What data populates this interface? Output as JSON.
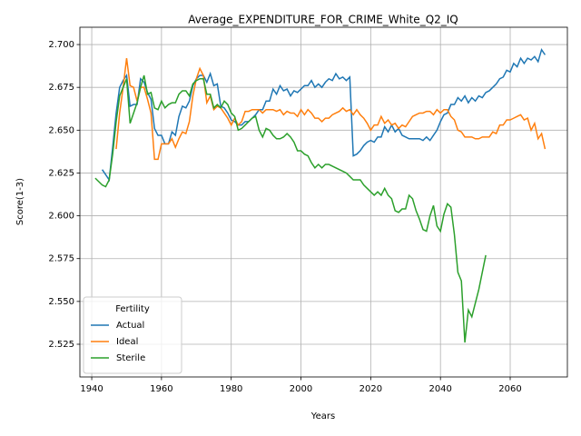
{
  "chart_data": {
    "type": "line",
    "title": "Average_EXPENDITURE_FOR_CRIME_White_Q2_IQ",
    "xlabel": "Years",
    "ylabel": "Score(1-3)",
    "legend_title": "Fertility",
    "legend": "lower left",
    "grid": true,
    "xlim": [
      1936.6,
      2076.4
    ],
    "ylim": [
      2.5059,
      2.7101
    ],
    "xticks": [
      1940,
      1960,
      1980,
      2000,
      2020,
      2040,
      2060
    ],
    "yticks": [
      2.525,
      {
        "value": 2.55,
        "label": "2.550"
      },
      2.575,
      {
        "value": 2.6,
        "label": "2.600"
      },
      2.625,
      {
        "value": 2.65,
        "label": "2.650"
      },
      2.675,
      {
        "value": 2.7,
        "label": "2.700"
      }
    ],
    "x": [
      1941,
      1942,
      1943,
      1944,
      1945,
      1946,
      1947,
      1948,
      1949,
      1950,
      1951,
      1952,
      1953,
      1954,
      1955,
      1956,
      1957,
      1958,
      1959,
      1960,
      1961,
      1962,
      1963,
      1964,
      1965,
      1966,
      1967,
      1968,
      1969,
      1970,
      1971,
      1972,
      1973,
      1974,
      1975,
      1976,
      1977,
      1978,
      1979,
      1980,
      1981,
      1982,
      1983,
      1984,
      1985,
      1986,
      1987,
      1988,
      1989,
      1990,
      1991,
      1992,
      1993,
      1994,
      1995,
      1996,
      1997,
      1998,
      1999,
      2000,
      2001,
      2002,
      2003,
      2004,
      2005,
      2006,
      2007,
      2008,
      2009,
      2010,
      2011,
      2012,
      2013,
      2014,
      2015,
      2016,
      2017,
      2018,
      2019,
      2020,
      2021,
      2022,
      2023,
      2024,
      2025,
      2026,
      2027,
      2028,
      2029,
      2030,
      2031,
      2032,
      2033,
      2034,
      2035,
      2036,
      2037,
      2038,
      2039,
      2040,
      2041,
      2042,
      2043,
      2044,
      2045,
      2046,
      2047,
      2048,
      2049,
      2050,
      2051,
      2052,
      2053,
      2054,
      2055,
      2056,
      2057,
      2058,
      2059,
      2060,
      2061,
      2062,
      2063,
      2064,
      2065,
      2066,
      2067,
      2068,
      2069,
      2070
    ],
    "series": [
      {
        "name": "Actual",
        "color": "#1f77b4",
        "values": [
          null,
          null,
          2.627,
          2.624,
          2.621,
          2.64,
          2.66,
          2.675,
          2.679,
          2.682,
          2.664,
          2.665,
          2.665,
          2.68,
          2.678,
          2.672,
          2.668,
          2.651,
          2.647,
          2.647,
          2.642,
          2.642,
          2.649,
          2.647,
          2.658,
          2.664,
          2.663,
          2.667,
          2.676,
          2.68,
          2.682,
          2.682,
          2.678,
          2.683,
          2.676,
          2.677,
          2.664,
          2.663,
          2.66,
          2.656,
          2.655,
          2.653,
          2.653,
          2.655,
          2.655,
          2.657,
          2.659,
          2.662,
          2.662,
          2.667,
          2.667,
          2.674,
          2.671,
          2.676,
          2.673,
          2.674,
          2.67,
          2.673,
          2.672,
          2.674,
          2.676,
          2.676,
          2.679,
          2.675,
          2.677,
          2.675,
          2.678,
          2.68,
          2.679,
          2.683,
          2.68,
          2.681,
          2.679,
          2.681,
          2.635,
          2.636,
          2.638,
          2.641,
          2.643,
          2.644,
          2.643,
          2.646,
          2.646,
          2.652,
          2.649,
          2.653,
          2.649,
          2.651,
          2.647,
          2.646,
          2.645,
          2.645,
          2.645,
          2.645,
          2.644,
          2.646,
          2.644,
          2.647,
          2.65,
          2.655,
          2.659,
          2.66,
          2.665,
          2.665,
          2.669,
          2.667,
          2.67,
          2.666,
          2.669,
          2.667,
          2.67,
          2.669,
          2.672,
          2.673,
          2.675,
          2.677,
          2.68,
          2.681,
          2.685,
          2.684,
          2.689,
          2.687,
          2.692,
          2.689,
          2.692,
          2.691,
          2.693,
          2.69,
          2.697,
          2.694
        ]
      },
      {
        "name": "Ideal",
        "color": "#ff7f0e",
        "values": [
          null,
          null,
          null,
          null,
          null,
          null,
          2.639,
          2.66,
          2.675,
          2.692,
          2.676,
          2.675,
          2.667,
          2.675,
          2.675,
          2.668,
          2.66,
          2.633,
          2.633,
          2.642,
          2.642,
          2.642,
          2.645,
          2.64,
          2.645,
          2.649,
          2.648,
          2.655,
          2.67,
          2.68,
          2.686,
          2.682,
          2.666,
          2.67,
          2.662,
          2.664,
          2.663,
          2.66,
          2.657,
          2.653,
          2.657,
          2.653,
          2.655,
          2.661,
          2.661,
          2.662,
          2.662,
          2.662,
          2.66,
          2.662,
          2.662,
          2.662,
          2.661,
          2.662,
          2.659,
          2.661,
          2.66,
          2.66,
          2.658,
          2.662,
          2.659,
          2.662,
          2.66,
          2.657,
          2.657,
          2.655,
          2.657,
          2.657,
          2.659,
          2.66,
          2.661,
          2.663,
          2.661,
          2.662,
          2.659,
          2.662,
          2.659,
          2.657,
          2.654,
          2.65,
          2.653,
          2.653,
          2.658,
          2.654,
          2.656,
          2.653,
          2.654,
          2.651,
          2.653,
          2.652,
          2.655,
          2.658,
          2.659,
          2.66,
          2.66,
          2.661,
          2.661,
          2.659,
          2.662,
          2.66,
          2.662,
          2.662,
          2.658,
          2.656,
          2.65,
          2.649,
          2.646,
          2.646,
          2.646,
          2.645,
          2.645,
          2.646,
          2.646,
          2.646,
          2.649,
          2.648,
          2.653,
          2.653,
          2.656,
          2.656,
          2.657,
          2.658,
          2.659,
          2.656,
          2.657,
          2.65,
          2.654,
          2.645,
          2.648,
          2.639
        ]
      },
      {
        "name": "Sterile",
        "color": "#2ca02c",
        "values": [
          2.622,
          2.62,
          2.618,
          2.617,
          2.621,
          2.636,
          2.655,
          2.67,
          2.675,
          2.68,
          2.654,
          2.66,
          2.666,
          2.675,
          2.682,
          2.671,
          2.672,
          2.663,
          2.662,
          2.667,
          2.663,
          2.665,
          2.666,
          2.666,
          2.671,
          2.673,
          2.673,
          2.67,
          2.677,
          2.679,
          2.68,
          2.68,
          2.671,
          2.671,
          2.663,
          2.665,
          2.663,
          2.667,
          2.665,
          2.66,
          2.658,
          2.65,
          2.651,
          2.653,
          2.655,
          2.657,
          2.658,
          2.65,
          2.646,
          2.651,
          2.65,
          2.647,
          2.645,
          2.645,
          2.646,
          2.648,
          2.646,
          2.643,
          2.638,
          2.638,
          2.636,
          2.635,
          2.631,
          2.628,
          2.63,
          2.628,
          2.63,
          2.63,
          2.629,
          2.628,
          2.627,
          2.626,
          2.625,
          2.623,
          2.621,
          2.621,
          2.621,
          2.618,
          2.616,
          2.614,
          2.612,
          2.614,
          2.612,
          2.616,
          2.612,
          2.61,
          2.603,
          2.602,
          2.604,
          2.604,
          2.612,
          2.61,
          2.603,
          2.598,
          2.592,
          2.591,
          2.6,
          2.606,
          2.594,
          2.591,
          2.601,
          2.607,
          2.605,
          2.589,
          2.567,
          2.562,
          2.526,
          2.545,
          2.541,
          2.549,
          2.557,
          2.567,
          2.577,
          null,
          null,
          null,
          null,
          null,
          null,
          null,
          null,
          null,
          null,
          null,
          null,
          null,
          null,
          null,
          null,
          null
        ]
      }
    ]
  }
}
